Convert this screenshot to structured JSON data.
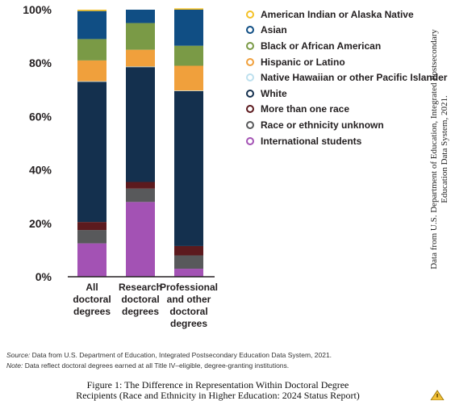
{
  "chart_data": {
    "type": "bar",
    "stacked": true,
    "categories": [
      [
        "All",
        "doctoral",
        "degrees"
      ],
      [
        "Research",
        "doctoral",
        "degrees"
      ],
      [
        "Professional",
        "and other",
        "doctoral",
        "degrees"
      ]
    ],
    "yticks": [
      "0%",
      "20%",
      "40%",
      "60%",
      "80%",
      "100%"
    ],
    "ylim": [
      0,
      100
    ],
    "series": [
      {
        "name": "International students",
        "color": "#a352b4",
        "values": [
          12.5,
          28,
          3
        ]
      },
      {
        "name": "Race or ethnicity unknown",
        "color": "#58595b",
        "values": [
          5,
          5,
          5
        ]
      },
      {
        "name": "More than one race",
        "color": "#5c1a1e",
        "values": [
          3,
          2.5,
          3.5
        ]
      },
      {
        "name": "White",
        "color": "#14304e",
        "values": [
          52.5,
          43,
          58
        ]
      },
      {
        "name": "Native Hawaiian or other Pacific Islander",
        "color": "#bde0ee",
        "values": [
          0.2,
          0.2,
          0.2
        ]
      },
      {
        "name": "Hispanic or Latino",
        "color": "#f0a03c",
        "values": [
          7.8,
          6.3,
          9.3
        ]
      },
      {
        "name": "Black or African American",
        "color": "#7a9a46",
        "values": [
          8,
          10,
          7.5
        ]
      },
      {
        "name": "Asian",
        "color": "#104e84",
        "values": [
          10.5,
          5,
          13.5
        ]
      },
      {
        "name": "American Indian or Alaska Native",
        "color": "#f4c126",
        "values": [
          0.5,
          0,
          0.5
        ]
      }
    ],
    "legend": [
      {
        "name": "American Indian or Alaska Native",
        "color": "#f4c126"
      },
      {
        "name": "Asian",
        "color": "#104e84"
      },
      {
        "name": "Black or African American",
        "color": "#7a9a46"
      },
      {
        "name": "Hispanic or Latino",
        "color": "#f0a03c"
      },
      {
        "name": "Native Hawaiian or other Pacific Islander",
        "color": "#bde0ee"
      },
      {
        "name": "White",
        "color": "#14304e"
      },
      {
        "name": "More than one race",
        "color": "#5c1a1e"
      },
      {
        "name": "Race or ethnicity unknown",
        "color": "#58595b"
      },
      {
        "name": "International students",
        "color": "#a352b4"
      }
    ],
    "legend_position": "right",
    "grid": false
  },
  "source_note": {
    "source_label": "Source:",
    "source_text": "Data from U.S. Department of Education, Integrated Postsecondary Education Data System, 2021.",
    "note_label": "Note:",
    "note_text": "Data reflect doctoral degrees earned at all Title IV–eligible, degree-granting institutions."
  },
  "side_note": {
    "line1": "Data from U.S. Department of Education, Integrated Postsecondary",
    "line2": "Education Data System, 2021."
  },
  "caption": {
    "line1": "Figure 1: The Difference in Representation Within Doctoral Degree",
    "line2": "Recipients (Race and Ethnicity in Higher Education: 2024 Status Report)"
  },
  "icons": {
    "corner": "warning-triangle-icon"
  }
}
